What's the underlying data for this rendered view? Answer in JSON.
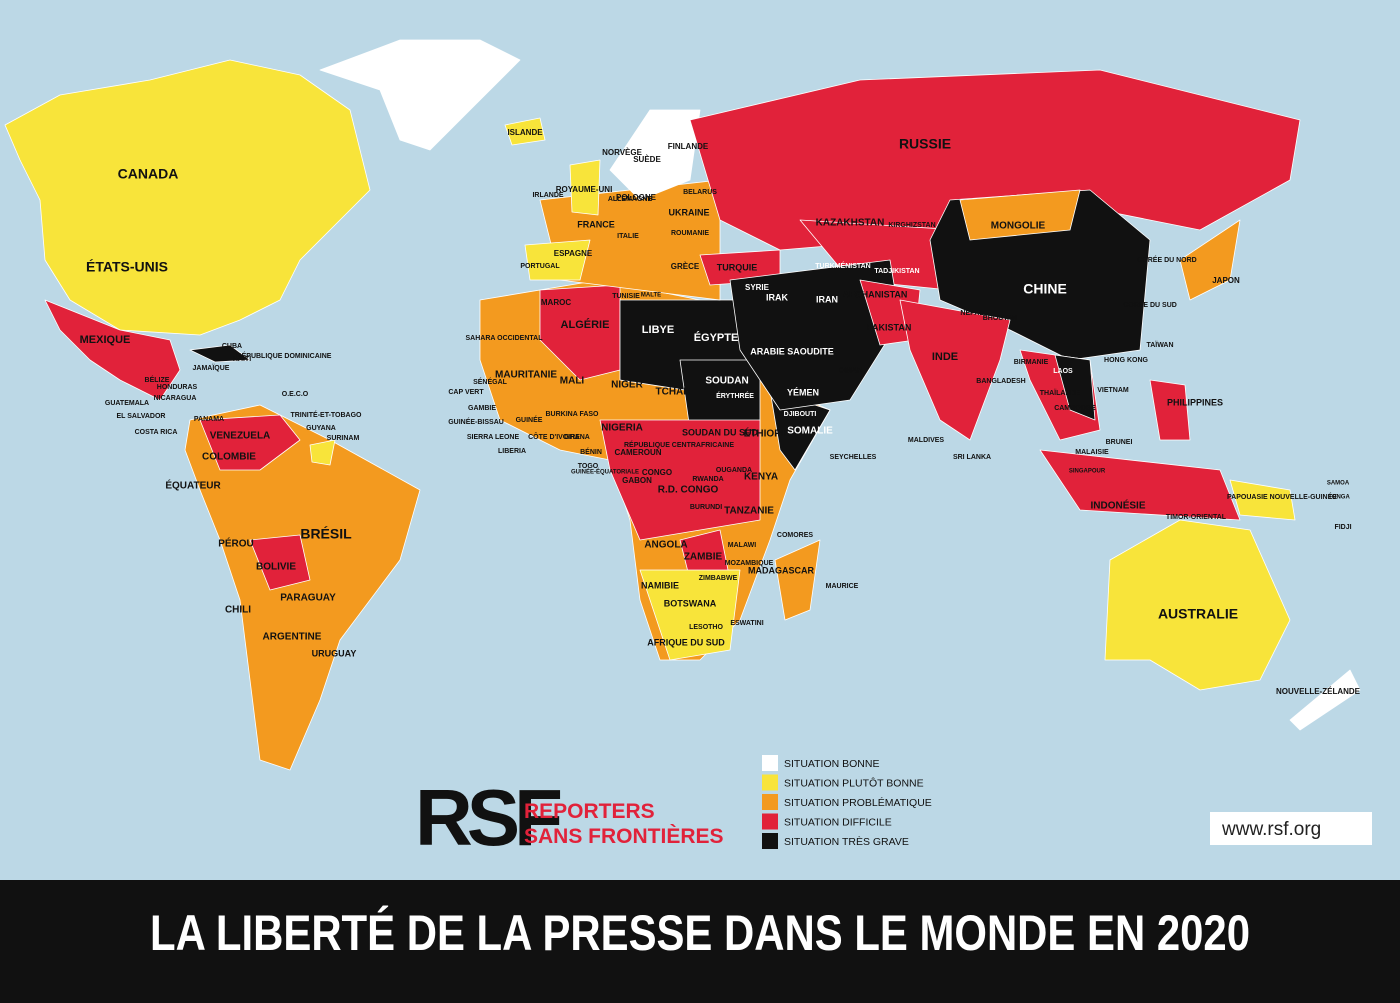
{
  "title": "LA LIBERTÉ DE LA PRESSE DANS LE MONDE EN 2020",
  "logo": {
    "mark": "RSF",
    "line1": "REPORTERS",
    "line2": "SANS FRONTIÈRES"
  },
  "url": "www.rsf.org",
  "legend": [
    {
      "label": "SITUATION BONNE",
      "color": "#ffffff"
    },
    {
      "label": "SITUATION PLUTÔT BONNE",
      "color": "#f8e43a"
    },
    {
      "label": "SITUATION PROBLÉMATIQUE",
      "color": "#f39a1f"
    },
    {
      "label": "SITUATION DIFFICILE",
      "color": "#e1223a"
    },
    {
      "label": "SITUATION TRÈS GRAVE",
      "color": "#111111"
    }
  ],
  "labels": [
    "CANADA",
    "ÉTATS-UNIS",
    "RUSSIE",
    "CHINE",
    "BRÉSIL",
    "AUSTRALIE",
    "MEXIQUE",
    "KAZAKHSTAN",
    "MONGOLIE",
    "INDE",
    "LIBYE",
    "ÉGYPTE",
    "ALGÉRIE",
    "SOUDAN",
    "TCHAD",
    "NIGER",
    "MALI",
    "MAURITANIE",
    "VENEZUELA",
    "COLOMBIE",
    "PÉROU",
    "BOLIVIE",
    "PARAGUAY",
    "ARGENTINE",
    "URUGUAY",
    "CHILI",
    "ÉQUATEUR",
    "ANGOLA",
    "ZAMBIE",
    "NAMIBIE",
    "BOTSWANA",
    "AFRIQUE DU SUD",
    "MADAGASCAR",
    "KENYA",
    "ÉTHIOPIE",
    "SOMALIE",
    "TANZANIE",
    "R.D. CONGO",
    "NIGERIA",
    "IRAN",
    "IRAK",
    "ARABIE SAOUDITE",
    "YÉMEN",
    "AFGHANISTAN",
    "PAKISTAN",
    "TURQUIE",
    "UKRAINE",
    "POLOGNE",
    "FRANCE",
    "ESPAGNE",
    "ITALIE",
    "ALLEMAGNE",
    "ROYAUME-UNI",
    "NORVÈGE",
    "SUÈDE",
    "FINLANDE",
    "ISLANDE",
    "INDONÉSIE",
    "PHILIPPINES",
    "JAPON",
    "CORÉE DU NORD",
    "CORÉE DU SUD",
    "TAÏWAN",
    "HONG KONG",
    "VIETNAM",
    "LAOS",
    "THAÏLANDE",
    "CAMBODGE",
    "BIRMANIE",
    "BANGLADESH",
    "NÉPAL",
    "BHOUTAN",
    "MALAISIE",
    "SINGAPOUR",
    "BRUNEI",
    "TIMOR-ORIENTAL",
    "PAPOUASIE NOUVELLE-GUINÉE",
    "NOUVELLE-ZÉLANDE",
    "FIDJI",
    "SAMOA",
    "TONGA",
    "MAURICE",
    "COMORES",
    "SEYCHELLES",
    "MALDIVES",
    "SRI LANKA",
    "OMAN",
    "TURKMÉNISTAN",
    "KIRGHIZSTAN",
    "TADJIKISTAN",
    "SYRIE",
    "CUBA",
    "HAÏTI",
    "RÉPUBLIQUE DOMINICAINE",
    "JAMAÏQUE",
    "BÉLIZE",
    "HONDURAS",
    "NICARAGUA",
    "GUATEMALA",
    "EL SALVADOR",
    "PANAMA",
    "COSTA RICA",
    "O.E.C.O",
    "TRINITÉ-ET-TOBAGO",
    "GUYANA",
    "SURINAM",
    "SAHARA OCCIDENTAL",
    "MAROC",
    "TUNISIE",
    "MALTE",
    "SÉNÉGAL",
    "CAP VERT",
    "GAMBIE",
    "GUINÉE-BISSAU",
    "GUINÉE",
    "SIERRA LEONE",
    "LIBERIA",
    "BURKINA FASO",
    "CÔTE D'IVOIRE",
    "GHANA",
    "BÉNIN",
    "TOGO",
    "CAMEROUN",
    "GUINÉE-ÉQUATORIALE",
    "GABON",
    "CONGO",
    "RÉPUBLIQUE CENTRAFRICAINE",
    "SOUDAN DU SUD",
    "ÉRYTHRÉE",
    "DJIBOUTI",
    "OUGANDA",
    "RWANDA",
    "BURUNDI",
    "MALAWI",
    "MOZAMBIQUE",
    "ZIMBABWE",
    "LESOTHO",
    "ESWATINI",
    "IRLANDE",
    "PORTUGAL",
    "GRÈCE",
    "BELARUS",
    "ROUMANIE"
  ]
}
